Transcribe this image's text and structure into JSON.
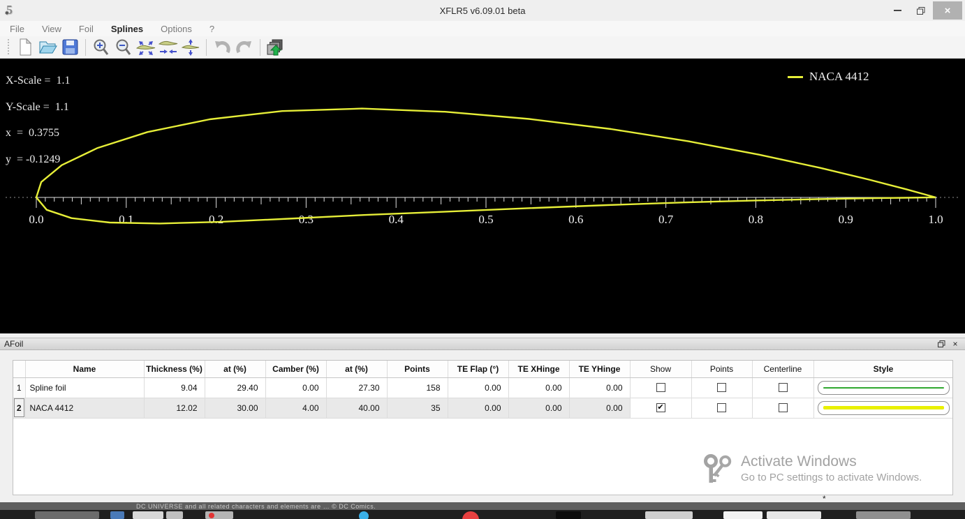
{
  "window": {
    "logo_text": "5",
    "title": "XFLR5 v6.09.01 beta",
    "close_glyph": "×"
  },
  "menu": {
    "items": [
      {
        "label": "File",
        "active": false
      },
      {
        "label": "View",
        "active": false
      },
      {
        "label": "Foil",
        "active": false
      },
      {
        "label": "Splines",
        "active": true
      },
      {
        "label": "Options",
        "active": false
      },
      {
        "label": "?",
        "active": false
      }
    ]
  },
  "toolbar": {
    "buttons": [
      "new-file",
      "open-file",
      "save",
      "zoom-in",
      "zoom-out",
      "reset-scales",
      "reset-x-scale",
      "reset-y-scale",
      "undo",
      "redo",
      "stored-foils"
    ]
  },
  "canvas": {
    "overlay": {
      "lines": [
        "X-Scale =  1.1",
        "Y-Scale =  1.1",
        "x  =  0.3755",
        "y  = -0.1249"
      ]
    },
    "legend": {
      "label": "NACA 4412",
      "color": "#e6ee38"
    }
  },
  "chart_data": {
    "type": "line",
    "title": "AFoil direct design view — NACA 4412 outline",
    "background": "#000000",
    "x_axis": {
      "ticks": [
        "0.0",
        "0.1",
        "0.2",
        "0.3",
        "0.4",
        "0.5",
        "0.6",
        "0.7",
        "0.8",
        "0.9",
        "1.0"
      ],
      "range": [
        0,
        1
      ],
      "minor_tick_step": 0.01,
      "medium_tick_step": 0.05,
      "major_tick_step": 0.1
    },
    "x_scale": 1.1,
    "y_scale": 1.1,
    "cursor": {
      "x": 0.3755,
      "y": -0.1249
    },
    "legend_position": "top-right",
    "series": [
      {
        "name": "NACA 4412",
        "color": "#e6ee38",
        "points": 35,
        "airfoil": {
          "max_camber_pct": 4.0,
          "camber_position_pct": 40.0,
          "max_thickness_pct": 12.02
        }
      }
    ]
  },
  "afoil_panel": {
    "title": "AFoil",
    "table": {
      "headers": [
        {
          "label": "",
          "bold": false
        },
        {
          "label": "Name",
          "bold": true
        },
        {
          "label": "Thickness (%)",
          "bold": true
        },
        {
          "label": "at (%)",
          "bold": true
        },
        {
          "label": "Camber (%)",
          "bold": true
        },
        {
          "label": "at (%)",
          "bold": true
        },
        {
          "label": "Points",
          "bold": true
        },
        {
          "label": "TE Flap (°)",
          "bold": true
        },
        {
          "label": "TE XHinge",
          "bold": true
        },
        {
          "label": "TE YHinge",
          "bold": true
        },
        {
          "label": "Show",
          "bold": false
        },
        {
          "label": "Points",
          "bold": false
        },
        {
          "label": "Centerline",
          "bold": false
        },
        {
          "label": "Style",
          "bold": true
        }
      ],
      "rows": [
        {
          "num": "1",
          "name": "Spline foil",
          "values": [
            "9.04",
            "29.40",
            "0.00",
            "27.30",
            "158",
            "0.00",
            "0.00",
            "0.00"
          ],
          "checks": [
            false,
            false,
            false
          ],
          "style": {
            "color": "#2fa82f",
            "thickness": 2
          },
          "selected": false
        },
        {
          "num": "2",
          "name": "NACA 4412",
          "values": [
            "12.02",
            "30.00",
            "4.00",
            "40.00",
            "35",
            "0.00",
            "0.00",
            "0.00"
          ],
          "checks": [
            true,
            false,
            false
          ],
          "style": {
            "color": "#e9f000",
            "thickness": 5
          },
          "selected": true
        }
      ]
    },
    "watermark": {
      "title": "Activate Windows",
      "subtitle": "Go to PC settings to activate Windows."
    },
    "footnote": "*"
  },
  "taskbar": {
    "wallpaper_text": "DC UNIVERSE and all related characters and elements are … © DC Comics."
  }
}
